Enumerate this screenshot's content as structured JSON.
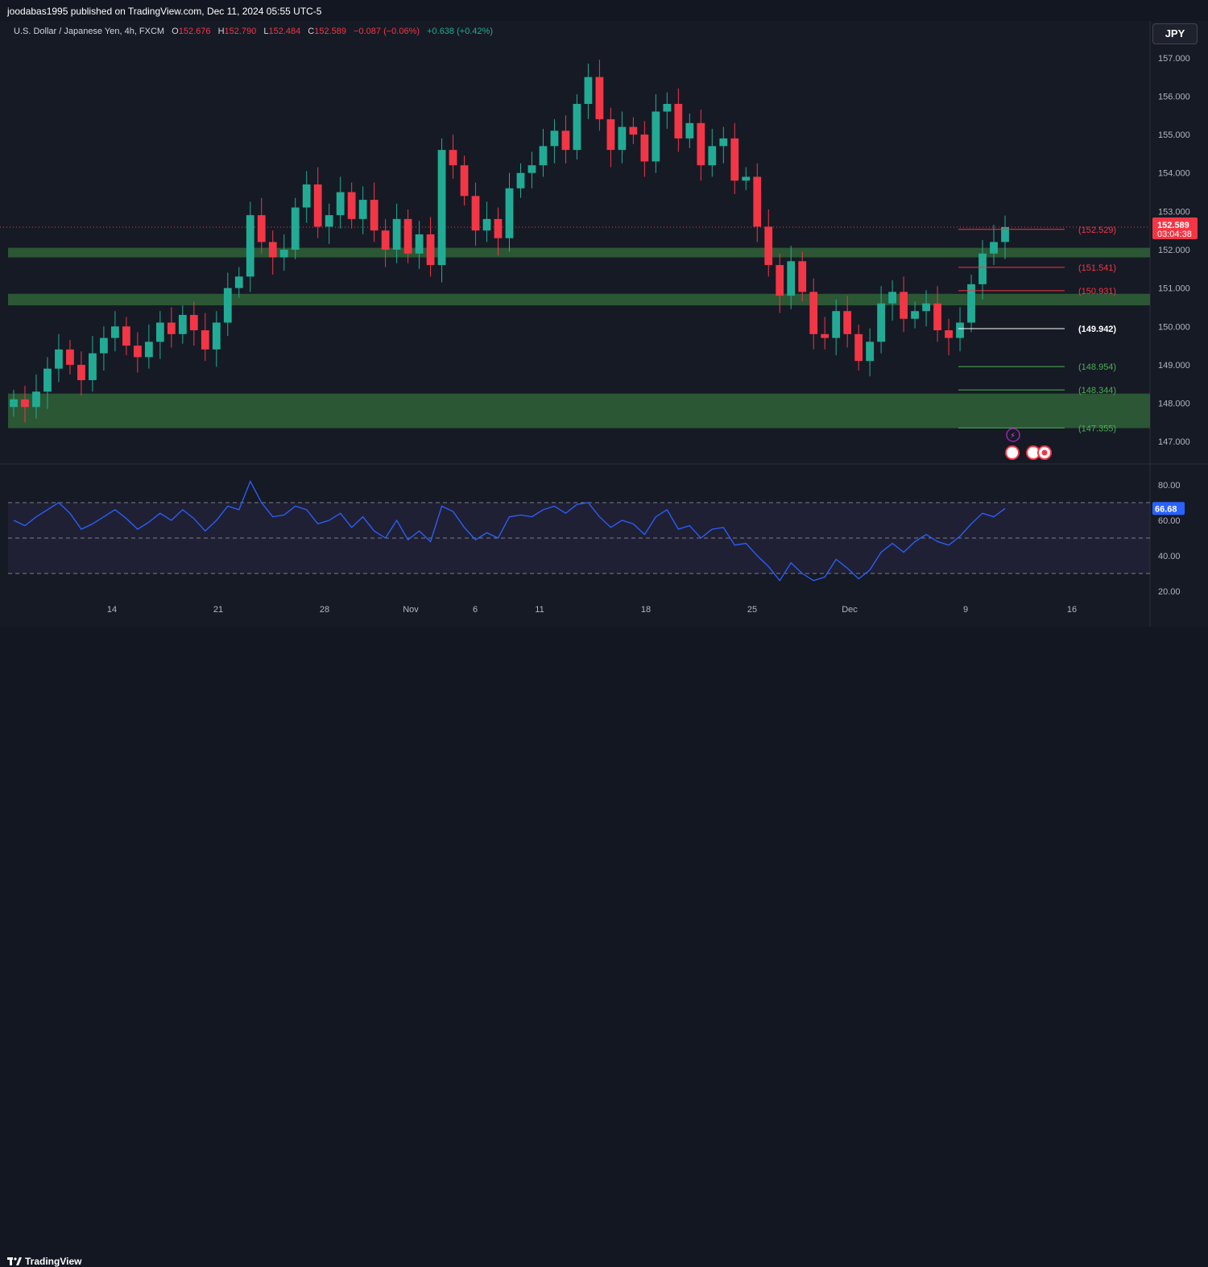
{
  "header": {
    "publisher_line": "joodabas1995 published on TradingView.com, Dec 11, 2024 05:55 UTC-5"
  },
  "legend": {
    "symbol": "U.S. Dollar / Japanese Yen, 4h, FXCM",
    "o_label": "O",
    "o_value": "152.676",
    "h_label": "H",
    "h_value": "152.790",
    "l_label": "L",
    "l_value": "152.484",
    "c_label": "C",
    "c_value": "152.589",
    "change": "−0.087 (−0.06%)",
    "change2": "+0.638 (+0.42%)"
  },
  "currency_button": "JPY",
  "footer": {
    "brand": "TradingView"
  },
  "colors": {
    "up": "#22ab94",
    "down": "#f23645",
    "zone": "#2e5e36",
    "rsi": "#2962ff",
    "background": "#161a25"
  },
  "chart_data": [
    {
      "type": "candlestick",
      "interval": "4h",
      "ylim": [
        146.5,
        157.5
      ],
      "y_ticks": [
        "157.000",
        "156.000",
        "155.000",
        "154.000",
        "153.000",
        "152.000",
        "151.000",
        "150.000",
        "149.000",
        "148.000",
        "147.000"
      ],
      "x_ticks": [
        "14",
        "21",
        "28",
        "Nov",
        "6",
        "11",
        "18",
        "25",
        "Dec",
        "9",
        "16"
      ],
      "last_price": "152.589",
      "countdown": "03:04:38",
      "closes": [
        148.1,
        147.9,
        148.3,
        148.9,
        149.4,
        149.0,
        148.6,
        149.3,
        149.7,
        150.0,
        149.5,
        149.2,
        149.6,
        150.1,
        149.8,
        150.3,
        149.9,
        149.4,
        150.1,
        151.0,
        151.3,
        152.9,
        152.2,
        151.8,
        152.0,
        153.1,
        153.7,
        152.6,
        152.9,
        153.5,
        152.8,
        153.3,
        152.5,
        152.0,
        152.8,
        151.9,
        152.4,
        151.6,
        154.6,
        154.2,
        153.4,
        152.5,
        152.8,
        152.3,
        153.6,
        154.0,
        154.2,
        154.7,
        155.1,
        154.6,
        155.8,
        156.5,
        155.4,
        154.6,
        155.2,
        155.0,
        154.3,
        155.6,
        155.8,
        154.9,
        155.3,
        154.2,
        154.7,
        154.9,
        153.8,
        153.9,
        152.6,
        151.6,
        150.8,
        151.7,
        150.9,
        149.8,
        149.7,
        150.4,
        149.8,
        149.1,
        149.6,
        150.6,
        150.9,
        150.2,
        150.4,
        150.6,
        149.9,
        149.7,
        150.1,
        151.1,
        151.9,
        152.2,
        152.59
      ],
      "zones": [
        {
          "from": 151.8,
          "to": 152.05
        },
        {
          "from": 150.55,
          "to": 150.85
        },
        {
          "from": 147.35,
          "to": 148.25
        }
      ],
      "levels": [
        {
          "value": 152.529,
          "label": "(152.529)",
          "color": "#f23645"
        },
        {
          "value": 151.541,
          "label": "(151.541)",
          "color": "#f23645"
        },
        {
          "value": 150.931,
          "label": "(150.931)",
          "color": "#f23645"
        },
        {
          "value": 149.942,
          "label": "(149.942)",
          "color": "#ffffff"
        },
        {
          "value": 148.954,
          "label": "(148.954)",
          "color": "#4caf50"
        },
        {
          "value": 148.344,
          "label": "(148.344)",
          "color": "#4caf50"
        },
        {
          "value": 147.355,
          "label": "(147.355)",
          "color": "#4caf50"
        }
      ]
    },
    {
      "type": "line",
      "indicator": "RSI",
      "ylim": [
        15,
        90
      ],
      "y_ticks": [
        "80.00",
        "60.00",
        "40.00",
        "20.00"
      ],
      "bands": [
        70,
        50,
        30
      ],
      "last_value": "66.68",
      "values": [
        60,
        57,
        62,
        66,
        70,
        64,
        55,
        58,
        62,
        66,
        61,
        55,
        59,
        64,
        60,
        66,
        61,
        54,
        60,
        68,
        66,
        82,
        70,
        62,
        63,
        68,
        66,
        58,
        60,
        64,
        56,
        62,
        54,
        50,
        60,
        49,
        54,
        48,
        68,
        65,
        56,
        49,
        53,
        50,
        62,
        63,
        62,
        66,
        68,
        64,
        69,
        70,
        62,
        56,
        60,
        58,
        52,
        62,
        66,
        55,
        57,
        50,
        55,
        56,
        46,
        47,
        40,
        34,
        26,
        36,
        30,
        26,
        28,
        38,
        33,
        27,
        32,
        42,
        47,
        42,
        48,
        52,
        48,
        46,
        51,
        58,
        64,
        62,
        66.68
      ]
    }
  ]
}
